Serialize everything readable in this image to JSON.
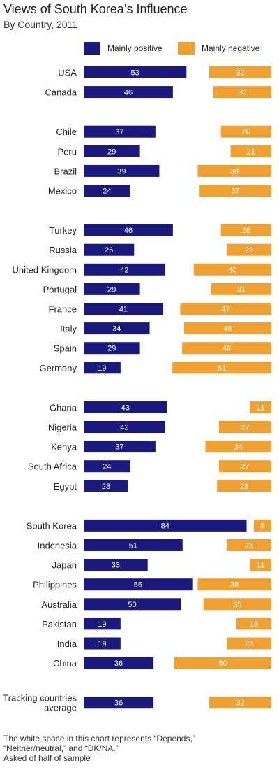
{
  "title": "Views of South Korea’s Influence",
  "subtitle": "By Country, 2011",
  "colors": {
    "positive": "#1a1a7e",
    "negative": "#f0a030"
  },
  "footnote": {
    "line1": "The white space in this chart represents “Depends,”",
    "line2": "“Neither/neutral,” and “DK/NA.”",
    "line3": "Asked of half of sample"
  },
  "chart_data": {
    "type": "bar",
    "title": "Views of South Korea’s Influence",
    "subtitle": "By Country, 2011",
    "legend_position": "top",
    "series": [
      {
        "name": "Mainly positive",
        "color": "#1a1a7e",
        "values": [
          53,
          46,
          37,
          29,
          39,
          24,
          46,
          26,
          42,
          29,
          41,
          34,
          29,
          19,
          43,
          42,
          37,
          24,
          23,
          84,
          51,
          33,
          56,
          50,
          19,
          19,
          36,
          36
        ]
      },
      {
        "name": "Mainly negative",
        "color": "#f0a030",
        "values": [
          32,
          30,
          26,
          21,
          38,
          37,
          26,
          23,
          40,
          31,
          47,
          45,
          46,
          51,
          11,
          27,
          34,
          27,
          28,
          9,
          23,
          11,
          38,
          35,
          18,
          23,
          50,
          32
        ]
      }
    ],
    "groups": [
      {
        "categories": [
          {
            "label": "USA",
            "positive": 53,
            "negative": 32
          },
          {
            "label": "Canada",
            "positive": 46,
            "negative": 30
          }
        ]
      },
      {
        "categories": [
          {
            "label": "Chile",
            "positive": 37,
            "negative": 26
          },
          {
            "label": "Peru",
            "positive": 29,
            "negative": 21
          },
          {
            "label": "Brazil",
            "positive": 39,
            "negative": 38
          },
          {
            "label": "Mexico",
            "positive": 24,
            "negative": 37
          }
        ]
      },
      {
        "categories": [
          {
            "label": "Turkey",
            "positive": 46,
            "negative": 26
          },
          {
            "label": "Russia",
            "positive": 26,
            "negative": 23
          },
          {
            "label": "United Kingdom",
            "positive": 42,
            "negative": 40
          },
          {
            "label": "Portugal",
            "positive": 29,
            "negative": 31
          },
          {
            "label": "France",
            "positive": 41,
            "negative": 47
          },
          {
            "label": "Italy",
            "positive": 34,
            "negative": 45
          },
          {
            "label": "Spain",
            "positive": 29,
            "negative": 46
          },
          {
            "label": "Germany",
            "positive": 19,
            "negative": 51
          }
        ]
      },
      {
        "categories": [
          {
            "label": "Ghana",
            "positive": 43,
            "negative": 11
          },
          {
            "label": "Nigeria",
            "positive": 42,
            "negative": 27
          },
          {
            "label": "Kenya",
            "positive": 37,
            "negative": 34
          },
          {
            "label": "South Africa",
            "positive": 24,
            "negative": 27
          },
          {
            "label": "Egypt",
            "positive": 23,
            "negative": 28
          }
        ]
      },
      {
        "categories": [
          {
            "label": "South Korea",
            "positive": 84,
            "negative": 9
          },
          {
            "label": "Indonesia",
            "positive": 51,
            "negative": 23
          },
          {
            "label": "Japan",
            "positive": 33,
            "negative": 11
          },
          {
            "label": "Philippines",
            "positive": 56,
            "negative": 38
          },
          {
            "label": "Australia",
            "positive": 50,
            "negative": 35
          },
          {
            "label": "Pakistan",
            "positive": 19,
            "negative": 18
          },
          {
            "label": "India",
            "positive": 19,
            "negative": 23
          },
          {
            "label": "China",
            "positive": 36,
            "negative": 50
          }
        ]
      },
      {
        "categories": [
          {
            "label": "Tracking countries average",
            "label_lines": [
              "Tracking countries",
              "average"
            ],
            "positive": 36,
            "negative": 32
          }
        ]
      }
    ]
  }
}
